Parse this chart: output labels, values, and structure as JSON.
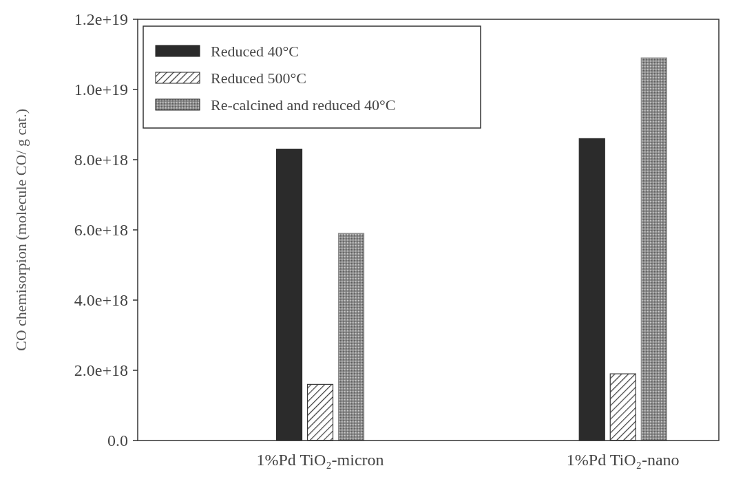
{
  "chart_data": {
    "type": "bar",
    "ylabel": "CO chemisorpion (molecule CO/ g cat.)",
    "categories": [
      "1%Pd TiO₂-micron",
      "1%Pd TiO₂-nano"
    ],
    "series": [
      {
        "name": "Reduced 40°C",
        "color": "#2b2b2b",
        "values": [
          8.3e+18,
          8.6e+18
        ]
      },
      {
        "name": "Reduced 500°C",
        "color": "#3a3a3a",
        "values": [
          1.6e+18,
          1.9e+18
        ]
      },
      {
        "name": "Re-calcined and reduced 40°C",
        "color": "#8c8c8c",
        "values": [
          5.9e+18,
          1.09e+19
        ]
      }
    ],
    "ylim": [
      0,
      1.2e+19
    ],
    "yticks": [
      {
        "value": 0,
        "label": "0.0"
      },
      {
        "value": 2e+18,
        "label": "2.0e+18"
      },
      {
        "value": 4e+18,
        "label": "4.0e+18"
      },
      {
        "value": 6e+18,
        "label": "6.0e+18"
      },
      {
        "value": 8e+18,
        "label": "8.0e+18"
      },
      {
        "value": 1e+19,
        "label": "1.0e+19"
      },
      {
        "value": 1.2e+19,
        "label": "1.2e+19"
      }
    ],
    "grid": false,
    "legend": "top left"
  }
}
